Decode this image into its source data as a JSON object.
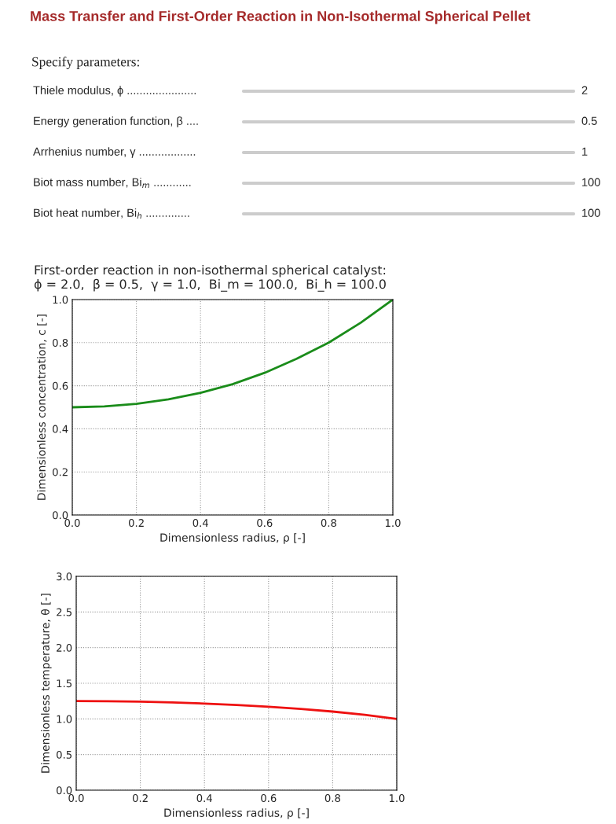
{
  "chart_data": [
    {
      "type": "other",
      "title": "Mass Transfer and First-Order Reaction in Non-Isothermal Spherical Pellet",
      "subtitle": "Specify parameters:",
      "annotations": [
        "Thiele modulus, ϕ ......................",
        "2",
        "Energy generation function, β ....",
        "0.5",
        "Arrhenius number, γ ..................",
        "1",
        "Biot mass number, Bi$_{m}$ ............",
        "100",
        "Biot heat number, Bi$_{h}$ ..............",
        "100"
      ]
    },
    {
      "type": "line",
      "title": "First-order reaction in non-isothermal spherical catalyst:\nϕ = 2.0,  β = 0.5,  γ = 1.0,  Bi_m = 100.0,  Bi_h = 100.0",
      "xlabel": "Dimensionless radius, ρ [-]",
      "ylabel": "Dimensionless concentration, c [-]",
      "grid": true,
      "x": [
        0,
        0.1,
        0.2,
        0.3,
        0.4,
        0.5,
        0.6,
        0.7,
        0.8,
        0.9,
        1.0
      ],
      "series": [
        {
          "color": "#1a8c1a",
          "values": [
            0.5,
            0.504,
            0.516,
            0.537,
            0.567,
            0.607,
            0.66,
            0.725,
            0.8,
            0.893,
            1.0
          ]
        }
      ],
      "xlim": [
        0,
        1
      ],
      "ylim": [
        0,
        1
      ],
      "xticks": [
        {
          "value": 0,
          "label": "0.0"
        },
        {
          "value": 0.2,
          "label": "0.2"
        },
        {
          "value": 0.4,
          "label": "0.4"
        },
        {
          "value": 0.6,
          "label": "0.6"
        },
        {
          "value": 0.8,
          "label": "0.8"
        },
        {
          "value": 1,
          "label": "1.0"
        }
      ],
      "yticks": [
        {
          "value": 0,
          "label": "0.0"
        },
        {
          "value": 0.2,
          "label": "0.2"
        },
        {
          "value": 0.4,
          "label": "0.4"
        },
        {
          "value": 0.6,
          "label": "0.6"
        },
        {
          "value": 0.8,
          "label": "0.8"
        },
        {
          "value": 1,
          "label": "1.0"
        }
      ]
    },
    {
      "type": "line",
      "xlabel": "Dimensionless radius, ρ [-]",
      "ylabel": "Dimensionless temperature, θ [-]",
      "grid": true,
      "x": [
        0,
        0.1,
        0.2,
        0.3,
        0.4,
        0.5,
        0.6,
        0.7,
        0.8,
        0.9,
        1.0
      ],
      "series": [
        {
          "color": "#ee1111",
          "values": [
            1.25,
            1.248,
            1.241,
            1.23,
            1.215,
            1.195,
            1.17,
            1.14,
            1.103,
            1.057,
            1.0
          ]
        }
      ],
      "xlim": [
        0,
        1
      ],
      "ylim": [
        0,
        3
      ],
      "xticks": [
        {
          "value": 0,
          "label": "0.0"
        },
        {
          "value": 0.2,
          "label": "0.2"
        },
        {
          "value": 0.4,
          "label": "0.4"
        },
        {
          "value": 0.6,
          "label": "0.6"
        },
        {
          "value": 0.8,
          "label": "0.8"
        },
        {
          "value": 1,
          "label": "1.0"
        }
      ],
      "yticks": [
        {
          "value": 0,
          "label": "0.0"
        },
        {
          "value": 0.5,
          "label": "0.5"
        },
        {
          "value": 1,
          "label": "1.0"
        },
        {
          "value": 1.5,
          "label": "1.5"
        },
        {
          "value": 2,
          "label": "2.0"
        },
        {
          "value": 2.5,
          "label": "2.5"
        },
        {
          "value": 3,
          "label": "3.0"
        }
      ]
    }
  ]
}
